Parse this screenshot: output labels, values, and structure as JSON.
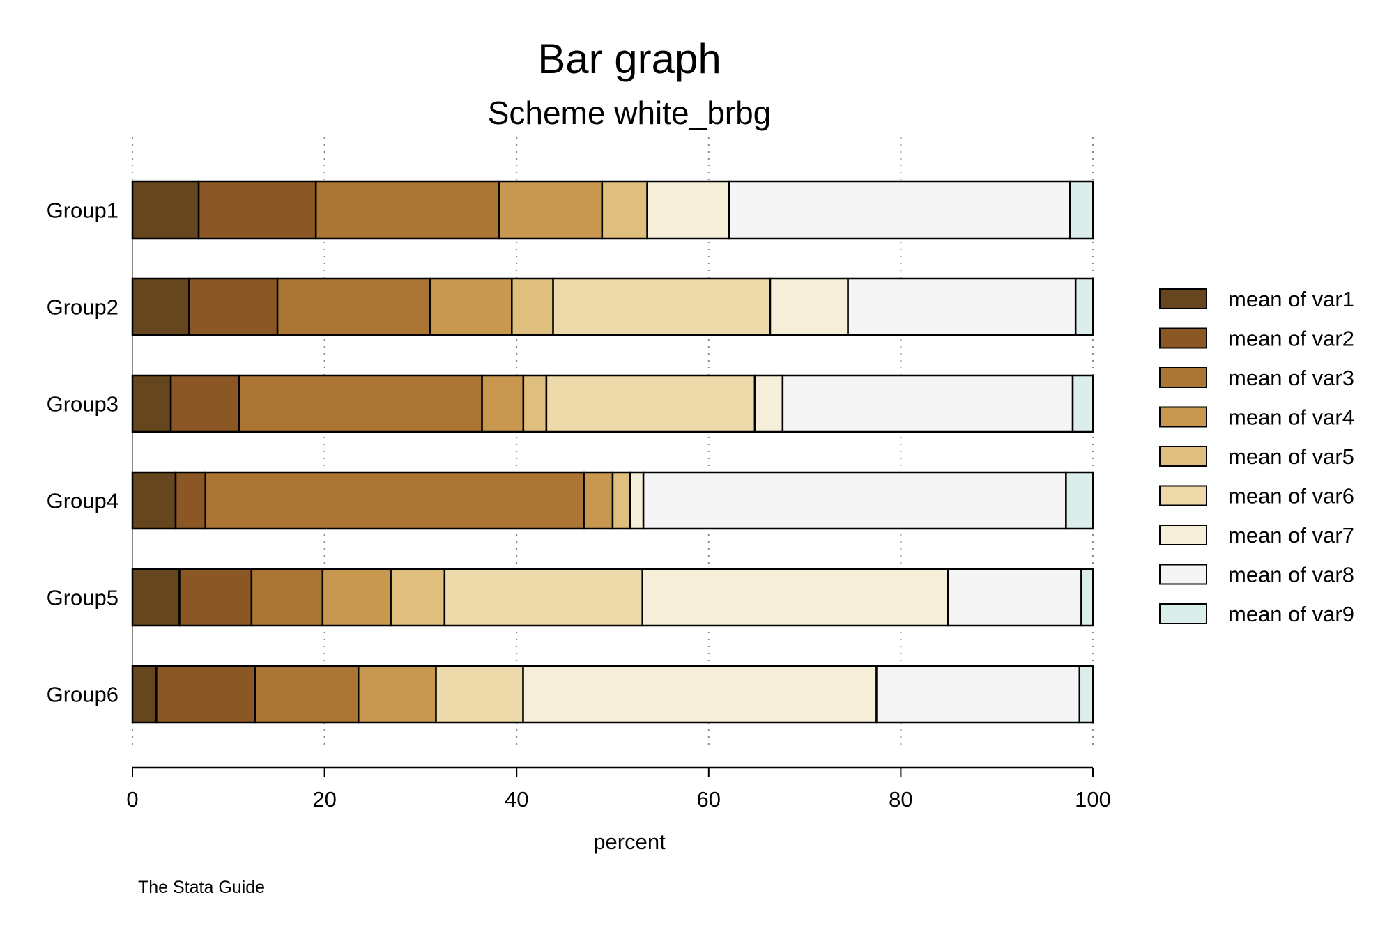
{
  "chart_data": {
    "type": "bar",
    "orientation": "horizontal",
    "stacked": "percent",
    "title": "Bar graph",
    "subtitle": "Scheme white_brbg",
    "xlabel": "percent",
    "ylabel": "",
    "xlim": [
      0,
      100
    ],
    "xticks": [
      "0",
      "20",
      "40",
      "60",
      "80",
      "100"
    ],
    "note": "The Stata Guide",
    "grid": "vertical dotted",
    "legend_position": "right",
    "categories": [
      "Group1",
      "Group2",
      "Group3",
      "Group4",
      "Group5",
      "Group6"
    ],
    "series": [
      {
        "name": "mean of var1",
        "color": "#66461f",
        "values": [
          6.9,
          5.9,
          4.0,
          4.5,
          4.9,
          2.5
        ]
      },
      {
        "name": "mean of var2",
        "color": "#8a5725",
        "values": [
          12.2,
          9.2,
          7.1,
          3.1,
          7.5,
          10.3
        ]
      },
      {
        "name": "mean of var3",
        "color": "#ab7533",
        "values": [
          19.1,
          15.9,
          25.3,
          39.4,
          7.4,
          10.8
        ]
      },
      {
        "name": "mean of var4",
        "color": "#c99850",
        "values": [
          10.7,
          8.5,
          4.3,
          3.0,
          7.1,
          8.1
        ]
      },
      {
        "name": "mean of var5",
        "color": "#dfbf7e",
        "values": [
          4.7,
          4.3,
          2.4,
          1.8,
          5.6,
          0.0
        ]
      },
      {
        "name": "mean of var6",
        "color": "#edd9a9",
        "values": [
          0.0,
          22.6,
          21.7,
          0.0,
          20.6,
          9.1
        ]
      },
      {
        "name": "mean of var7",
        "color": "#f5eed8",
        "values": [
          8.5,
          8.1,
          2.9,
          1.4,
          31.8,
          36.9
        ]
      },
      {
        "name": "mean of var8",
        "color": "#f5f5f5",
        "values": [
          35.5,
          23.7,
          30.2,
          44.0,
          13.9,
          21.2
        ]
      },
      {
        "name": "mean of var9",
        "color": "#dbeeeb",
        "values": [
          2.4,
          1.8,
          2.1,
          2.8,
          1.2,
          1.4
        ]
      }
    ]
  }
}
